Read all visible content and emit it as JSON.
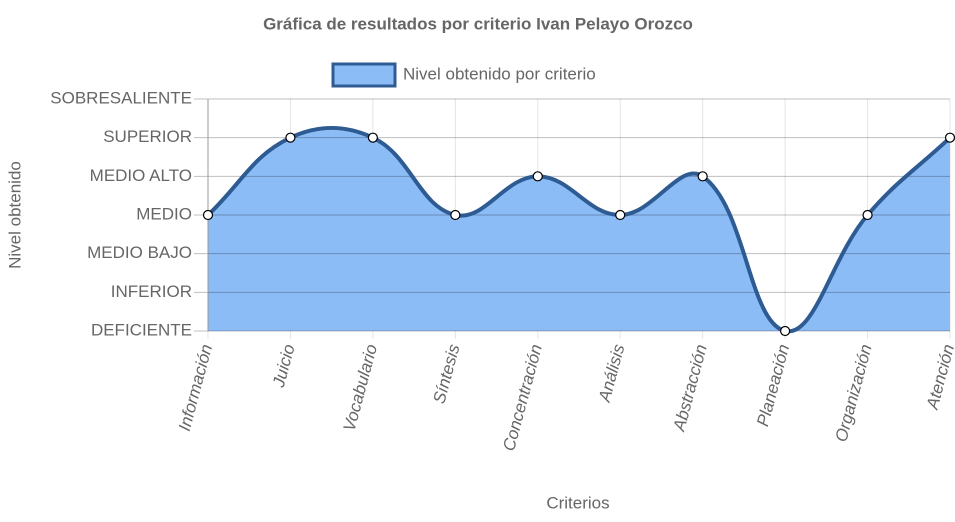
{
  "chart_data": {
    "type": "line",
    "title": "Gráfica de resultados por criterio Ivan Pelayo Orozco",
    "x_label": "Criterios",
    "y_label": "Nivel obtenido",
    "categories": [
      "Información",
      "Juicio",
      "Vocabulario",
      "Síntesis",
      "Concentración",
      "Análisis",
      "Abstracción",
      "Planeación",
      "Organización",
      "Atención"
    ],
    "series": [
      {
        "name": "Nivel obtenido por criterio",
        "color": "#2f5b93",
        "fill": "#8cbcf6",
        "values": [
          3,
          5,
          5,
          3,
          4,
          3,
          4,
          0,
          3,
          5
        ]
      }
    ],
    "ylim": [
      0,
      6
    ],
    "yticks": [
      {
        "value": 0,
        "label": "DEFICIENTE"
      },
      {
        "value": 1,
        "label": "INFERIOR"
      },
      {
        "value": 2,
        "label": "MEDIO BAJO"
      },
      {
        "value": 3,
        "label": "MEDIO"
      },
      {
        "value": 4,
        "label": "MEDIO ALTO"
      },
      {
        "value": 5,
        "label": "SUPERIOR"
      },
      {
        "value": 6,
        "label": "SOBRESALIENTE"
      }
    ],
    "grid": true,
    "legend": "top"
  }
}
